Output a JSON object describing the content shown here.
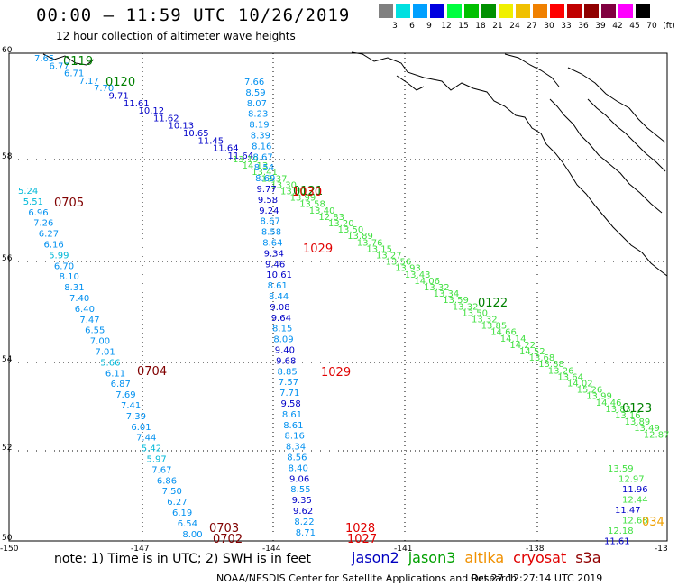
{
  "header": {
    "title": "00:00 – 11:59 UTC 10/26/2019",
    "subtitle": "12 hour collection of altimeter wave heights"
  },
  "colorbar": {
    "colors": [
      "#808080",
      "#00e0e0",
      "#00a0ff",
      "#0000e0",
      "#00ff40",
      "#00c000",
      "#009000",
      "#f0f000",
      "#f0c000",
      "#f08000",
      "#ff0000",
      "#c00000",
      "#900000",
      "#800040",
      "#ff00ff",
      "#000000"
    ],
    "labels": [
      "3",
      "6",
      "9",
      "12",
      "15",
      "18",
      "21",
      "24",
      "27",
      "30",
      "33",
      "36",
      "39",
      "42",
      "45",
      "70",
      "(ft)"
    ]
  },
  "axes": {
    "lat_labels": [
      "60",
      "58",
      "56",
      "54",
      "52",
      "50"
    ],
    "lon_labels": [
      "-150",
      "-147",
      "-144",
      "-141",
      "-138",
      "-13"
    ]
  },
  "passes": [
    {
      "label": "0119",
      "satellite": "jason3",
      "color": "#008000"
    },
    {
      "label": "0120",
      "satellite": "jason3",
      "color": "#008000"
    },
    {
      "label": "0121",
      "satellite": "jason3",
      "color": "#008000"
    },
    {
      "label": "0122",
      "satellite": "jason3",
      "color": "#008000"
    },
    {
      "label": "0123",
      "satellite": "jason3",
      "color": "#008000"
    },
    {
      "label": "0705",
      "satellite": "s3a",
      "color": "#800000"
    },
    {
      "label": "0704",
      "satellite": "s3a",
      "color": "#800000"
    },
    {
      "label": "0703",
      "satellite": "s3a",
      "color": "#800000"
    },
    {
      "label": "0702",
      "satellite": "s3a",
      "color": "#800000"
    },
    {
      "label": "1030",
      "satellite": "cryosat",
      "color": "#e00000"
    },
    {
      "label": "1029",
      "satellite": "cryosat",
      "color": "#e00000"
    },
    {
      "label": "1029",
      "satellite": "cryosat",
      "color": "#e00000"
    },
    {
      "label": "1028",
      "satellite": "cryosat",
      "color": "#e00000"
    },
    {
      "label": "1027",
      "satellite": "cryosat",
      "color": "#e00000"
    },
    {
      "label": "034",
      "satellite": "altika",
      "color": "#f0a000"
    }
  ],
  "tracks": {
    "track_a": {
      "color_key": "mixed",
      "values": [
        "7.65",
        "6.77",
        "6.71",
        "7.17",
        "7.70",
        "9.71",
        "11.61",
        "10.12",
        "11.62",
        "10.13",
        "10.65",
        "11.45",
        "11.64",
        "11.64",
        "13.19",
        "14.13",
        "13.41",
        "13.37",
        "13.30",
        "13.50",
        "13.99",
        "13.58",
        "13.40",
        "12.83",
        "13.20",
        "13.50",
        "13.89",
        "13.76",
        "13.15",
        "13.27",
        "13.56",
        "13.93",
        "13.43",
        "14.06",
        "13.32",
        "13.34",
        "13.59",
        "13.32",
        "13.50",
        "13.32",
        "13.85",
        "14.66",
        "14.14",
        "14.22",
        "14.52",
        "13.68",
        "13.88",
        "13.26",
        "13.64",
        "14.02",
        "15.26",
        "13.99",
        "14.46",
        "13.83",
        "13.16",
        "13.89",
        "13.49",
        "12.87"
      ]
    },
    "track_b": {
      "values": [
        "7.66",
        "8.59",
        "8.07",
        "8.23",
        "8.19",
        "8.39",
        "8.16",
        "8.67",
        "8.54",
        "8.69",
        "9.77",
        "9.58",
        "9.24",
        "8.67",
        "8.58",
        "8.64",
        "9.34",
        "9.46",
        "10.61",
        "8.61",
        "8.44",
        "9.08",
        "9.64",
        "8.15",
        "8.09",
        "9.40",
        "9.68",
        "8.85",
        "7.57",
        "7.71",
        "9.58",
        "8.61",
        "8.61",
        "8.16",
        "8.34",
        "8.56",
        "8.40",
        "9.06",
        "8.55",
        "9.35",
        "9.62",
        "8.22",
        "8.71"
      ]
    },
    "track_c": {
      "values": [
        "5.24",
        "5.51",
        "6.96",
        "7.26",
        "6.27",
        "6.16",
        "5.99",
        "6.70",
        "8.10",
        "8.31",
        "7.40",
        "6.40",
        "7.47",
        "6.55",
        "7.00",
        "7.01",
        "5.66",
        "6.11",
        "6.87",
        "7.69",
        "7.41",
        "7.39",
        "6.01",
        "7.44",
        "5.42",
        "5.97",
        "7.67",
        "6.86",
        "7.50",
        "6.27",
        "6.19",
        "6.54",
        "8.00"
      ]
    },
    "track_d": {
      "values": [
        "13.59",
        "12.97",
        "11.96",
        "12.44",
        "11.47",
        "12.68",
        "12.18",
        "11.61"
      ]
    }
  },
  "legend": {
    "note": "note:  1) Time is in UTC;  2) SWH is in feet",
    "items": [
      {
        "name": "jason2",
        "color": "#0000c0"
      },
      {
        "name": "jason3",
        "color": "#00a000"
      },
      {
        "name": "altika",
        "color": "#f09000"
      },
      {
        "name": "cryosat",
        "color": "#e00000"
      },
      {
        "name": "s3a",
        "color": "#900000"
      }
    ]
  },
  "footer": {
    "credit": "NOAA/NESDIS Center for Satellite Applications and Research",
    "timestamp": "Oct 27 12:27:14 UTC 2019"
  }
}
